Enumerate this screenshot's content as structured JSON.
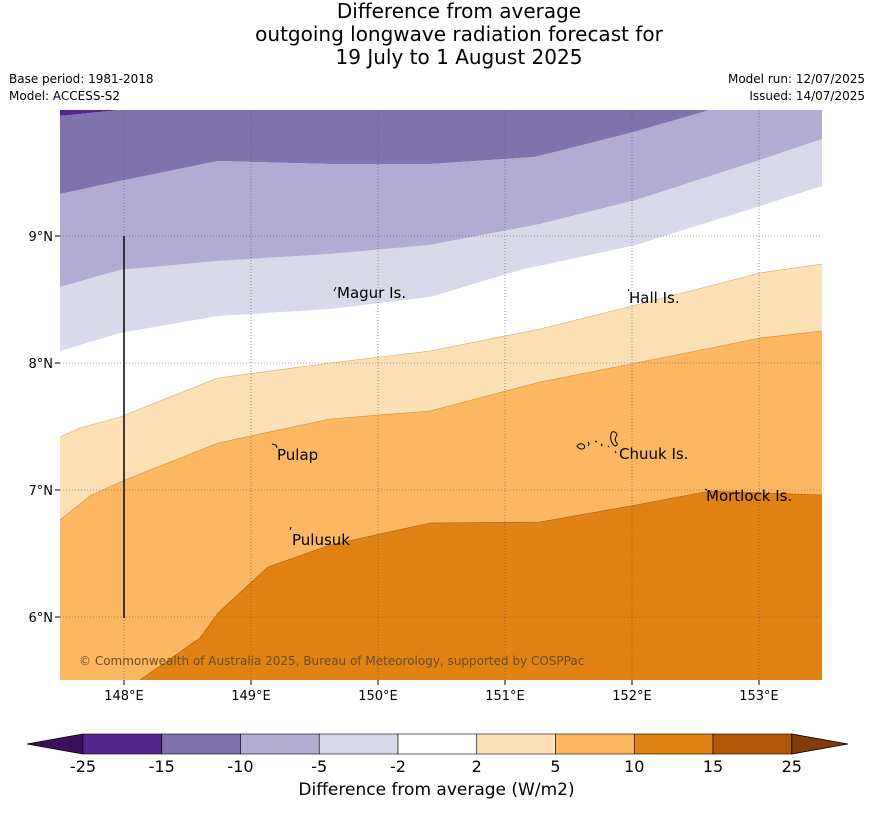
{
  "header": {
    "title_lines": [
      "Difference from average",
      "outgoing longwave radiation forecast for",
      "19 July to 1 August 2025"
    ],
    "base_period": "Base period: 1981-2018",
    "model": "Model: ACCESS-S2",
    "model_run": "Model run: 12/07/2025",
    "issued": "Issued: 14/07/2025"
  },
  "map": {
    "lon_labels": [
      "148°E",
      "149°E",
      "150°E",
      "151°E",
      "152°E",
      "153°E"
    ],
    "lat_labels": [
      "9°N",
      "8°N",
      "7°N",
      "6°N"
    ],
    "places": [
      "Magur Is.",
      "Hall Is.",
      "Pulap",
      "Chuuk Is.",
      "Pulusuk",
      "Mortlock Is."
    ],
    "copyright": "© Commonwealth of Australia 2025, Bureau of Meteorology, supported by COSPPac"
  },
  "colorbar": {
    "title": "Difference from average (W/m2)",
    "ticks": [
      "-25",
      "-15",
      "-10",
      "-5",
      "-2",
      "2",
      "5",
      "10",
      "15",
      "25"
    ],
    "colors": [
      "#3b0f5f",
      "#54278f",
      "#8073ac",
      "#b2abd2",
      "#d8daeb",
      "#ffffff",
      "#fee0b6",
      "#fbb762",
      "#e08214",
      "#b35806",
      "#7f3b08"
    ]
  }
}
